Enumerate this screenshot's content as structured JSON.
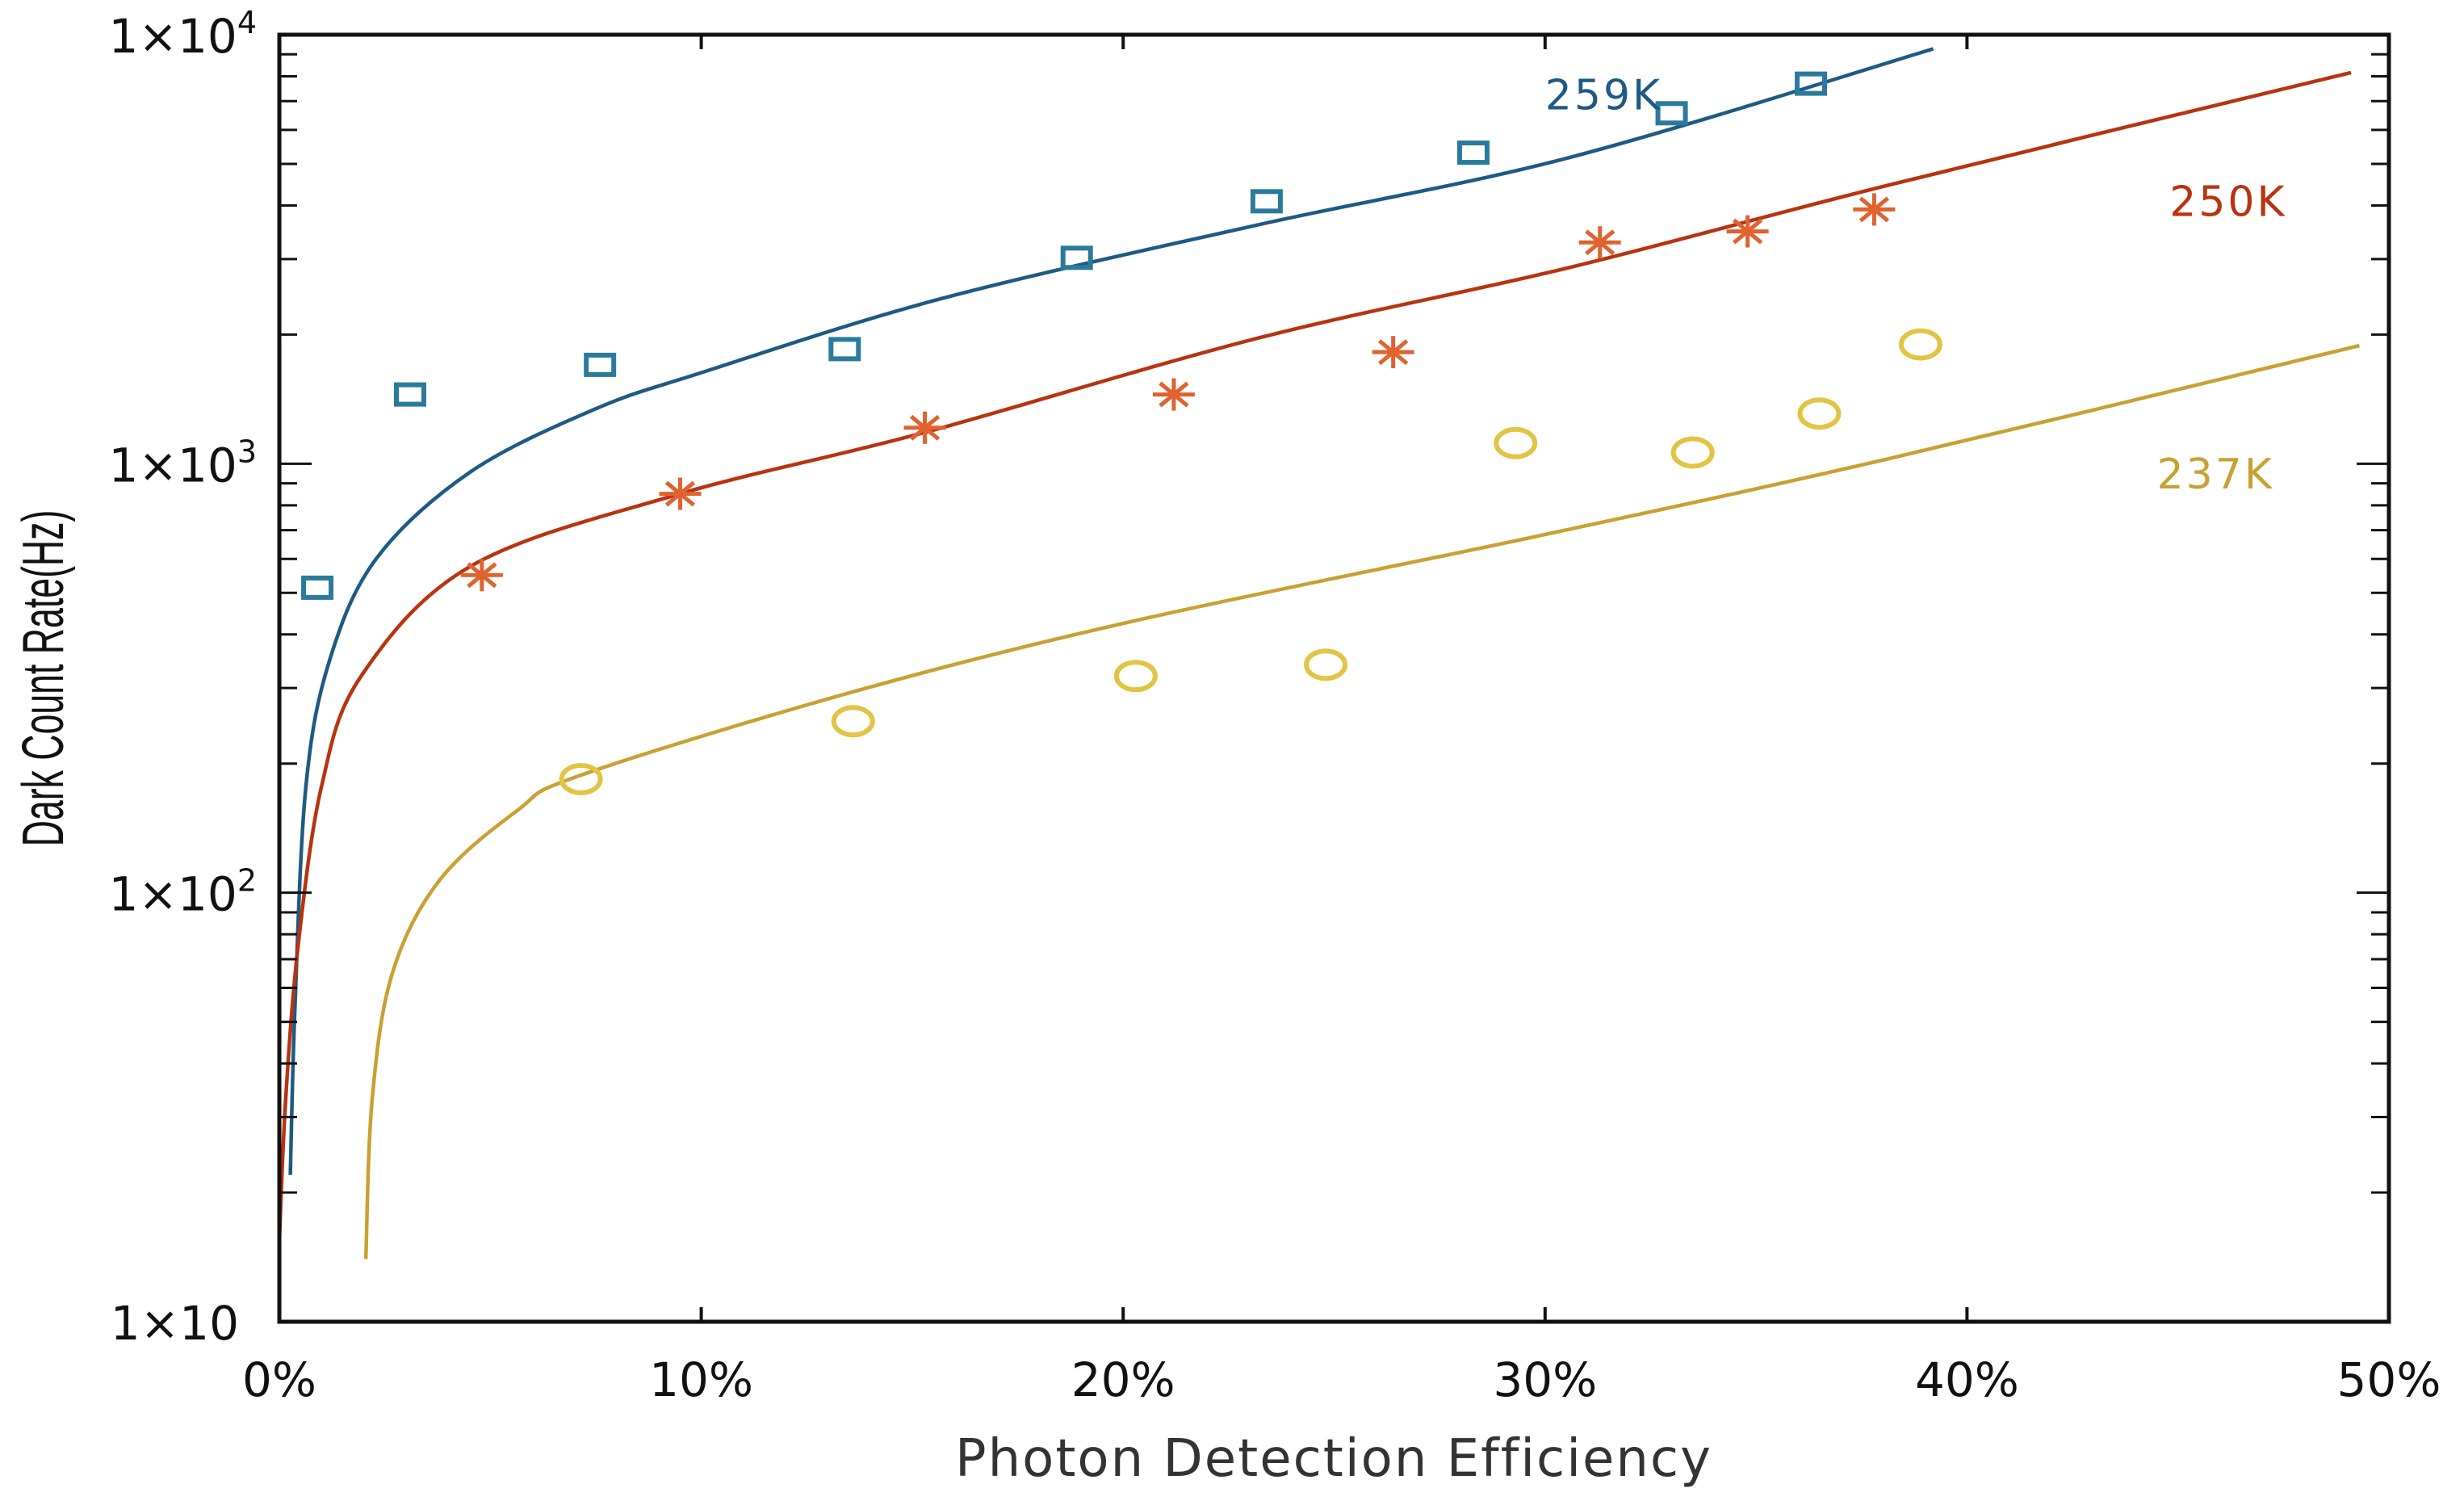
{
  "chart_data": {
    "type": "scatter",
    "title": "",
    "xlabel": "Photon Detection Efficiency",
    "ylabel": "Dark Count Rate(Hz)",
    "xlim": [
      0,
      50
    ],
    "ylim": [
      10,
      10000
    ],
    "yscale": "log",
    "x_unit": "%",
    "xticks": [
      0,
      10,
      20,
      30,
      40,
      50
    ],
    "xtick_labels": [
      "0%",
      "10%",
      "20%",
      "30%",
      "40%",
      "50%"
    ],
    "yticks": [
      10,
      100,
      1000,
      10000
    ],
    "ytick_labels": [
      {
        "base": "1×10",
        "exp": ""
      },
      {
        "base": "1×10",
        "exp": "2"
      },
      {
        "base": "1×10",
        "exp": "3"
      },
      {
        "base": "1×10",
        "exp": "4"
      }
    ],
    "grid": false,
    "series": [
      {
        "name": "259K",
        "marker": "square",
        "marker_color": "#2b7a9c",
        "line_color": "#1d5a84",
        "label_at": [
          30,
          7300
        ],
        "points": [
          [
            0.9,
            514
          ],
          [
            3.1,
            1450
          ],
          [
            7.6,
            1700
          ],
          [
            13.4,
            1850
          ],
          [
            18.9,
            3020
          ],
          [
            23.4,
            4090
          ],
          [
            28.3,
            5310
          ],
          [
            33.0,
            6560
          ],
          [
            36.3,
            7690
          ]
        ],
        "fit": [
          [
            0.26,
            22
          ],
          [
            0.37,
            54
          ],
          [
            0.63,
            177
          ],
          [
            1.19,
            348
          ],
          [
            2.31,
            603
          ],
          [
            4.55,
            960
          ],
          [
            7.5,
            1343
          ],
          [
            10,
            1630
          ],
          [
            15.7,
            2427
          ],
          [
            23.2,
            3605
          ],
          [
            30.6,
            5180
          ],
          [
            39.2,
            9270
          ]
        ]
      },
      {
        "name": "250K",
        "marker": "star",
        "marker_color": "#e0622e",
        "line_color": "#b8330f",
        "label_at": [
          44.8,
          4120
        ],
        "points": [
          [
            4.8,
            550
          ],
          [
            9.5,
            851
          ],
          [
            15.3,
            1213
          ],
          [
            21.2,
            1450
          ],
          [
            26.4,
            1820
          ],
          [
            31.3,
            3280
          ],
          [
            34.8,
            3480
          ],
          [
            37.8,
            3915
          ]
        ],
        "fit": [
          [
            0.0,
            15.4
          ],
          [
            0.15,
            33
          ],
          [
            0.45,
            76
          ],
          [
            1.0,
            177
          ],
          [
            1.94,
            320
          ],
          [
            4.55,
            578
          ],
          [
            9.5,
            851
          ],
          [
            15.3,
            1183
          ],
          [
            23.2,
            1963
          ],
          [
            30.6,
            2870
          ],
          [
            38.1,
            4450
          ],
          [
            49.1,
            8160
          ]
        ]
      },
      {
        "name": "237K",
        "marker": "circle",
        "marker_color": "#e2c445",
        "line_color": "#c9a032",
        "label_at": [
          44.5,
          955
        ],
        "points": [
          [
            7.15,
            184
          ],
          [
            13.6,
            251
          ],
          [
            20.3,
            320
          ],
          [
            24.8,
            340
          ],
          [
            29.3,
            1117
          ],
          [
            33.5,
            1062
          ],
          [
            36.5,
            1309
          ],
          [
            38.9,
            1897
          ]
        ],
        "fit": [
          [
            2.05,
            14
          ],
          [
            2.2,
            33
          ],
          [
            2.68,
            65
          ],
          [
            3.8,
            107
          ],
          [
            5.66,
            156
          ],
          [
            7.15,
            188
          ],
          [
            13.6,
            294
          ],
          [
            20.3,
            431
          ],
          [
            30,
            684
          ],
          [
            38.1,
            1025
          ],
          [
            49.3,
            1885
          ]
        ]
      }
    ]
  }
}
